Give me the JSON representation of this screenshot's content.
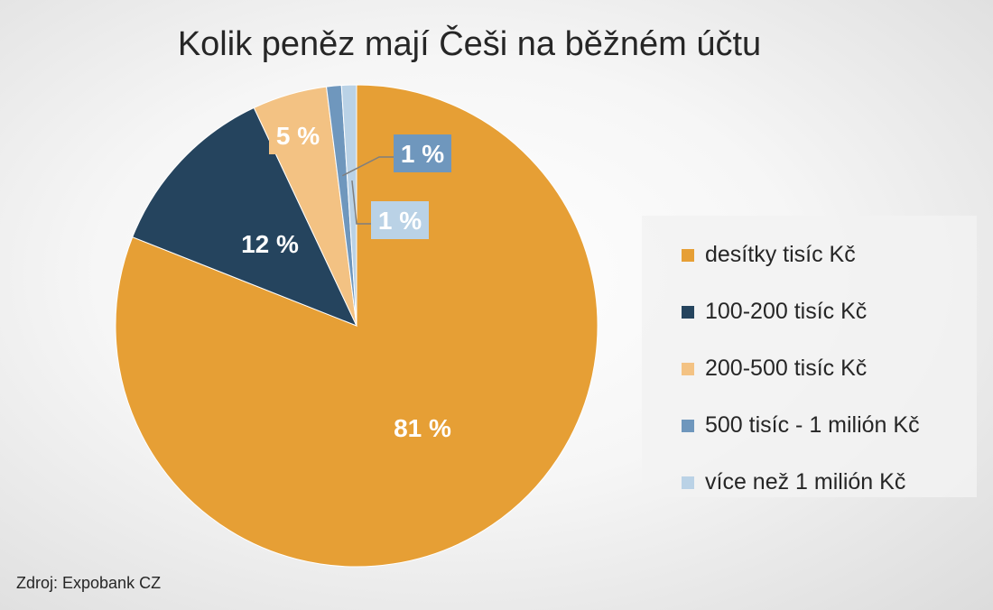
{
  "chart_data": {
    "type": "pie",
    "title": "Kolik peněz mají Češi na běžném účtu",
    "slices": [
      {
        "label": "desítky tisíc Kč",
        "value": 81,
        "display": "81 %",
        "color": "#E69F35"
      },
      {
        "label": "100-200 tisíc Kč",
        "value": 12,
        "display": "12 %",
        "color": "#25445E"
      },
      {
        "label": "200-500 tisíc Kč",
        "value": 5,
        "display": "5 %",
        "color": "#F3C283"
      },
      {
        "label": "500 tisíc - 1 milión Kč",
        "value": 1,
        "display": "1 %",
        "color": "#6F97BD"
      },
      {
        "label": "více než 1 milión Kč",
        "value": 1,
        "display": "1 %",
        "color": "#BAD2E6"
      }
    ],
    "legend_position": "right"
  },
  "footer": {
    "source": "Zdroj: Expobank CZ"
  }
}
